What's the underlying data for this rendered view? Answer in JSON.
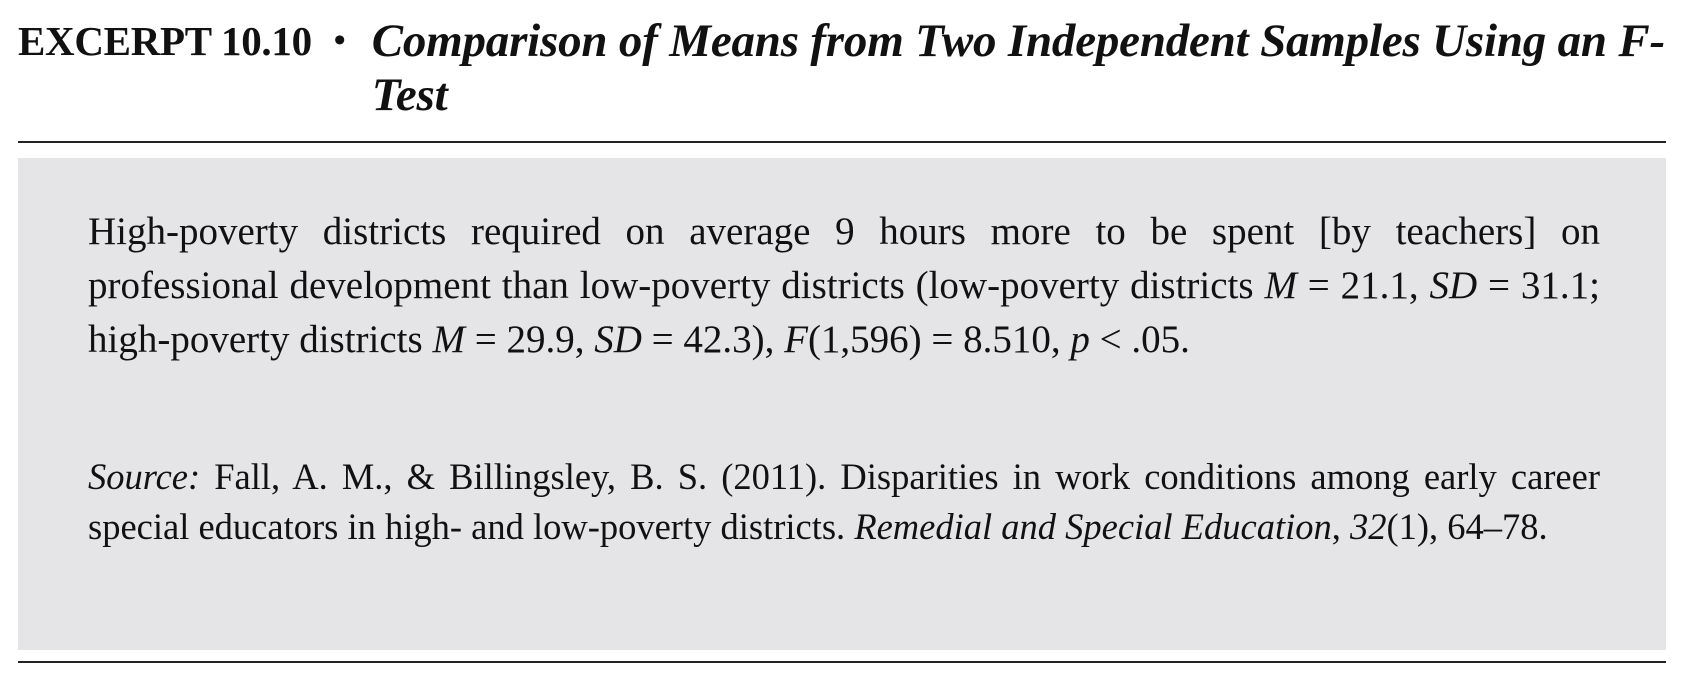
{
  "header": {
    "excerpt_label": "EXCERPT 10.10",
    "bullet": "•",
    "title": "Comparison of Means from Two Independent Samples Using an F-Test"
  },
  "quote": {
    "part1": "High-poverty districts required on average 9 hours more to be spent [by teachers] on professional development than low-poverty districts (low-poverty districts ",
    "m_symbol_1": "M",
    "part2": " = 21.1, ",
    "sd_symbol_1": "SD",
    "part3": " = 31.1; high-poverty districts ",
    "m_symbol_2": "M",
    "part4": " = 29.9, ",
    "sd_symbol_2": "SD",
    "part5": " = 42.3), ",
    "f_symbol": "F",
    "part6": "(1,596) = 8.510, ",
    "p_symbol": "p",
    "part7": " < .05."
  },
  "source": {
    "label": "Source:",
    "citation_text": " Fall, A. M., & Billingsley, B. S. (2011). Disparities in work conditions among early career special educators in high- and low-poverty districts. ",
    "journal": "Remedial and Special Education",
    "comma": ", ",
    "volume": "32",
    "issue_pages": "(1), 64–78."
  }
}
